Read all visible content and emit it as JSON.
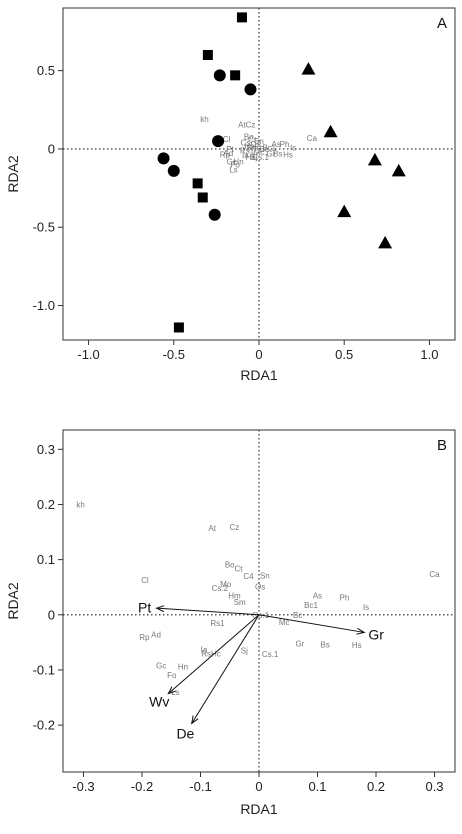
{
  "chart_data": [
    {
      "type": "scatter",
      "panel_label": "A",
      "xlabel": "RDA1",
      "ylabel": "RDA2",
      "xlim": [
        -1.15,
        1.15
      ],
      "ylim": [
        -1.22,
        0.9
      ],
      "xticks": [
        -1.0,
        -0.5,
        0,
        0.5,
        1.0
      ],
      "xtick_labels": [
        "-1.0",
        "-0.5",
        "0",
        "0.5",
        "1.0"
      ],
      "yticks": [
        -1.0,
        -0.5,
        0,
        0.5
      ],
      "ytick_labels": [
        "-1.0",
        "-0.5",
        "0",
        "0.5"
      ],
      "reference_lines": "dotted lines at x=0 and y=0",
      "series": [
        {
          "marker": "square",
          "points": [
            [
              -0.1,
              0.84
            ],
            [
              -0.3,
              0.6
            ],
            [
              -0.14,
              0.47
            ],
            [
              -0.36,
              -0.22
            ],
            [
              -0.33,
              -0.31
            ],
            [
              -0.47,
              -1.14
            ]
          ]
        },
        {
          "marker": "circle",
          "points": [
            [
              -0.23,
              0.47
            ],
            [
              -0.05,
              0.38
            ],
            [
              -0.24,
              0.05
            ],
            [
              -0.56,
              -0.06
            ],
            [
              -0.5,
              -0.14
            ],
            [
              -0.26,
              -0.42
            ]
          ]
        },
        {
          "marker": "triangle",
          "points": [
            [
              0.29,
              0.51
            ],
            [
              0.42,
              0.11
            ],
            [
              0.68,
              -0.07
            ],
            [
              0.82,
              -0.14
            ],
            [
              0.5,
              -0.4
            ],
            [
              0.74,
              -0.6
            ]
          ]
        }
      ],
      "species_labels": [
        {
          "text": "kh",
          "x": -0.32,
          "y": 0.19
        },
        {
          "text": "Ca",
          "x": 0.31,
          "y": 0.07
        },
        {
          "text": "At",
          "x": -0.1,
          "y": 0.155
        },
        {
          "text": "Cz",
          "x": -0.05,
          "y": 0.155
        },
        {
          "text": "Cl",
          "x": -0.19,
          "y": 0.065
        },
        {
          "text": "Bo",
          "x": -0.06,
          "y": 0.08
        },
        {
          "text": "Ct",
          "x": -0.04,
          "y": 0.06
        },
        {
          "text": "Sn",
          "x": 0.0,
          "y": 0.05
        },
        {
          "text": "Cs",
          "x": -0.08,
          "y": 0.04
        },
        {
          "text": "Os",
          "x": -0.02,
          "y": 0.03
        },
        {
          "text": "As",
          "x": 0.1,
          "y": 0.03
        },
        {
          "text": "Ph",
          "x": 0.15,
          "y": 0.03
        },
        {
          "text": "Hm",
          "x": -0.05,
          "y": 0.02
        },
        {
          "text": "Sm",
          "x": -0.04,
          "y": 0.01
        },
        {
          "text": "Pt",
          "x": -0.17,
          "y": 0.0
        },
        {
          "text": "Bc1",
          "x": 0.06,
          "y": 0.01
        },
        {
          "text": "Bc",
          "x": 0.03,
          "y": 0.0
        },
        {
          "text": "Is",
          "x": 0.2,
          "y": 0.01
        },
        {
          "text": "Rs1",
          "x": -0.07,
          "y": -0.01
        },
        {
          "text": "Rp",
          "x": -0.2,
          "y": -0.035
        },
        {
          "text": "Ad",
          "x": -0.18,
          "y": -0.025
        },
        {
          "text": "Mc",
          "x": 0.0,
          "y": -0.02
        },
        {
          "text": "Gr",
          "x": 0.07,
          "y": -0.03
        },
        {
          "text": "Bs",
          "x": 0.11,
          "y": -0.03
        },
        {
          "text": "Hs",
          "x": 0.17,
          "y": -0.035
        },
        {
          "text": "Ia",
          "x": -0.08,
          "y": -0.04
        },
        {
          "text": "Hc",
          "x": -0.05,
          "y": -0.05
        },
        {
          "text": "Sj",
          "x": -0.03,
          "y": -0.05
        },
        {
          "text": "Cs.1",
          "x": 0.01,
          "y": -0.05
        },
        {
          "text": "Gc",
          "x": -0.16,
          "y": -0.08
        },
        {
          "text": "Hn",
          "x": -0.12,
          "y": -0.08
        },
        {
          "text": "Fo",
          "x": -0.14,
          "y": -0.1
        },
        {
          "text": "Ls",
          "x": -0.15,
          "y": -0.13
        }
      ]
    },
    {
      "type": "scatter",
      "panel_label": "B",
      "xlabel": "RDA1",
      "ylabel": "RDA2",
      "xlim": [
        -0.335,
        0.335
      ],
      "ylim": [
        -0.285,
        0.335
      ],
      "xticks": [
        -0.3,
        -0.2,
        -0.1,
        0,
        0.1,
        0.2,
        0.3
      ],
      "xtick_labels": [
        "-0.3",
        "-0.2",
        "-0.1",
        "0",
        "0.1",
        "0.2",
        "0.3"
      ],
      "yticks": [
        -0.2,
        -0.1,
        0,
        0.1,
        0.2,
        0.3
      ],
      "ytick_labels": [
        "-0.2",
        "-0.1",
        "0",
        "0.1",
        "0.2",
        "0.3"
      ],
      "reference_lines": "dotted lines at x=0 and y=0",
      "vectors": [
        {
          "name": "Pt",
          "x": -0.175,
          "y": 0.012
        },
        {
          "name": "Gr",
          "x": 0.18,
          "y": -0.032
        },
        {
          "name": "Wv",
          "x": -0.155,
          "y": -0.143
        },
        {
          "name": "De",
          "x": -0.115,
          "y": -0.197
        }
      ],
      "species_labels": [
        {
          "text": "kh",
          "x": -0.305,
          "y": 0.2
        },
        {
          "text": "At",
          "x": -0.08,
          "y": 0.157
        },
        {
          "text": "Cz",
          "x": -0.042,
          "y": 0.159
        },
        {
          "text": "Cl",
          "x": -0.195,
          "y": 0.063
        },
        {
          "text": "Ca",
          "x": 0.3,
          "y": 0.074
        },
        {
          "text": "Bo",
          "x": -0.05,
          "y": 0.091
        },
        {
          "text": "Ct",
          "x": -0.035,
          "y": 0.084
        },
        {
          "text": "Sn",
          "x": 0.01,
          "y": 0.071
        },
        {
          "text": "C4",
          "x": -0.018,
          "y": 0.07
        },
        {
          "text": "Os",
          "x": 0.002,
          "y": 0.051
        },
        {
          "text": "Mo",
          "x": -0.057,
          "y": 0.056
        },
        {
          "text": "Cs.2",
          "x": -0.067,
          "y": 0.049
        },
        {
          "text": "Hm",
          "x": -0.042,
          "y": 0.035
        },
        {
          "text": "Sm",
          "x": -0.033,
          "y": 0.023
        },
        {
          "text": "As",
          "x": 0.1,
          "y": 0.035
        },
        {
          "text": "Ph",
          "x": 0.146,
          "y": 0.031
        },
        {
          "text": "Bc1",
          "x": 0.089,
          "y": 0.018
        },
        {
          "text": "Is",
          "x": 0.183,
          "y": 0.014
        },
        {
          "text": "Os.1",
          "x": 0.003,
          "y": 0.0
        },
        {
          "text": "Bc",
          "x": 0.066,
          "y": 0.0
        },
        {
          "text": "Mc",
          "x": 0.043,
          "y": -0.013
        },
        {
          "text": "Rs1",
          "x": -0.071,
          "y": -0.015
        },
        {
          "text": "Rp",
          "x": -0.196,
          "y": -0.04
        },
        {
          "text": "Ad",
          "x": -0.176,
          "y": -0.036
        },
        {
          "text": "Gr",
          "x": 0.07,
          "y": -0.052
        },
        {
          "text": "Bs",
          "x": 0.113,
          "y": -0.054
        },
        {
          "text": "Hs",
          "x": 0.167,
          "y": -0.055
        },
        {
          "text": "Ia",
          "x": -0.094,
          "y": -0.063
        },
        {
          "text": "RsHc",
          "x": -0.082,
          "y": -0.07
        },
        {
          "text": "Sj",
          "x": -0.025,
          "y": -0.065
        },
        {
          "text": "Cs.1",
          "x": 0.019,
          "y": -0.071
        },
        {
          "text": "Gc",
          "x": -0.167,
          "y": -0.092
        },
        {
          "text": "Hn",
          "x": -0.13,
          "y": -0.094
        },
        {
          "text": "Fo",
          "x": -0.149,
          "y": -0.109
        },
        {
          "text": "Ls",
          "x": -0.143,
          "y": -0.14
        }
      ]
    }
  ]
}
